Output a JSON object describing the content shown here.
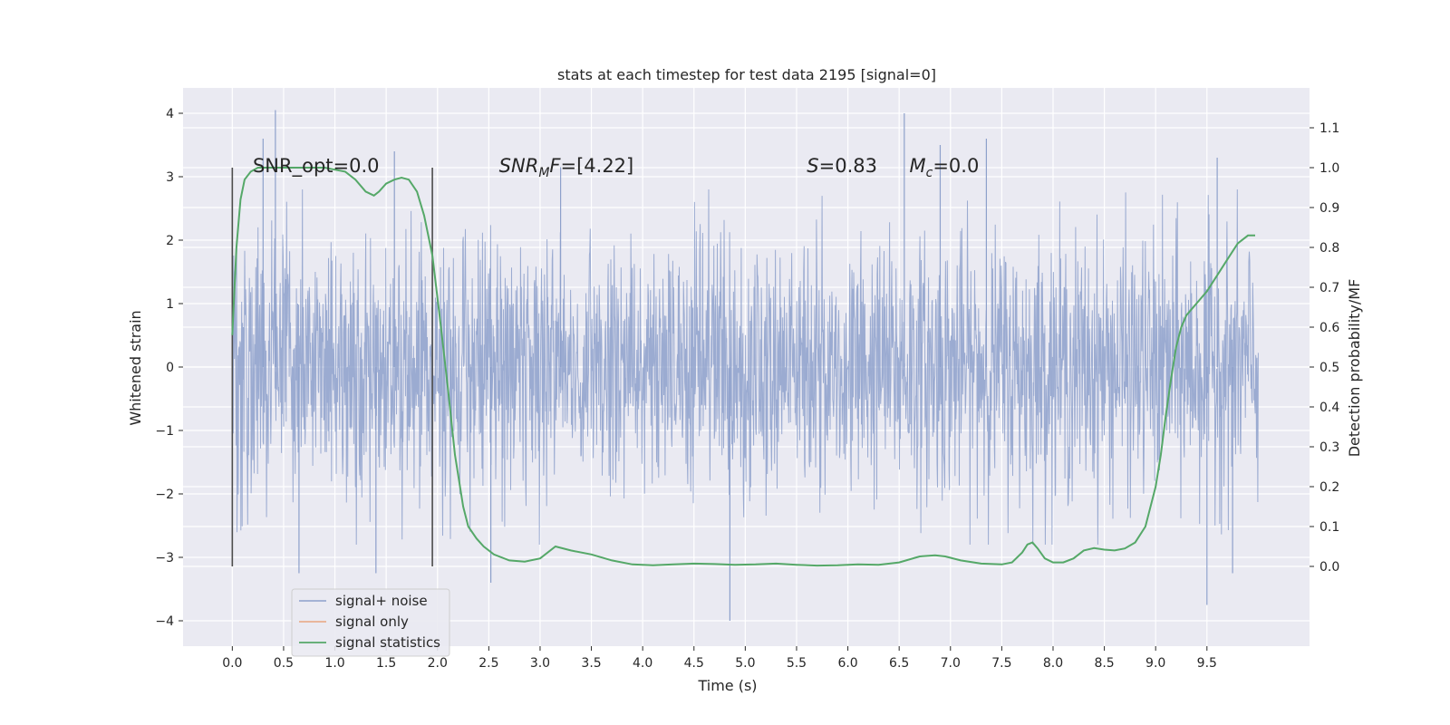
{
  "chart_data": {
    "type": "line",
    "title": "stats at each timestep for test data 2195 [signal=0]",
    "xlabel": "Time (s)",
    "ylabel": "Whitened strain",
    "y2label": "Detection probability/MF",
    "xlim": [
      -0.48,
      10.5
    ],
    "ylim": [
      -4.4,
      4.4
    ],
    "y2lim": [
      -0.2,
      1.2
    ],
    "xticks": [
      0.0,
      0.5,
      1.0,
      1.5,
      2.0,
      2.5,
      3.0,
      3.5,
      4.0,
      4.5,
      5.0,
      5.5,
      6.0,
      6.5,
      7.0,
      7.5,
      8.0,
      8.5,
      9.0,
      9.5
    ],
    "xtick_labels": [
      "0.0",
      "0.5",
      "1.0",
      "1.5",
      "2.0",
      "2.5",
      "3.0",
      "3.5",
      "4.0",
      "4.5",
      "5.0",
      "5.5",
      "6.0",
      "6.5",
      "7.0",
      "7.5",
      "8.0",
      "8.5",
      "9.0",
      "9.5"
    ],
    "yticks": [
      -4,
      -3,
      -2,
      -1,
      0,
      1,
      2,
      3,
      4
    ],
    "ytick_labels": [
      "−4",
      "−3",
      "−2",
      "−1",
      "0",
      "1",
      "2",
      "3",
      "4"
    ],
    "y2ticks": [
      0.0,
      0.1,
      0.2,
      0.3,
      0.4,
      0.5,
      0.6,
      0.7,
      0.8,
      0.9,
      1.0,
      1.1
    ],
    "y2tick_labels": [
      "0.0",
      "0.1",
      "0.2",
      "0.3",
      "0.4",
      "0.5",
      "0.6",
      "0.7",
      "0.8",
      "0.9",
      "1.0",
      "1.1"
    ],
    "grid": true,
    "legend_position": "lower-left",
    "series": [
      {
        "name": "signal+ noise",
        "color": "#8da0cb",
        "style": "dense noise",
        "x_range": [
          0.0,
          10.0
        ],
        "y_range": [
          -4.0,
          4.05
        ],
        "peaks": [
          {
            "x": 0.42,
            "y": 4.05
          },
          {
            "x": 0.3,
            "y": 3.6
          },
          {
            "x": 1.58,
            "y": 3.4
          },
          {
            "x": 6.55,
            "y": 4.0
          },
          {
            "x": 7.35,
            "y": 3.6
          },
          {
            "x": 6.9,
            "y": 3.5
          },
          {
            "x": 9.6,
            "y": 3.3
          },
          {
            "x": 3.2,
            "y": 3.15
          }
        ],
        "troughs": [
          {
            "x": 4.85,
            "y": -4.0
          },
          {
            "x": 9.5,
            "y": -3.75
          },
          {
            "x": 2.52,
            "y": -3.4
          },
          {
            "x": 1.4,
            "y": -3.25
          },
          {
            "x": 0.65,
            "y": -3.25
          },
          {
            "x": 9.75,
            "y": -3.25
          }
        ]
      },
      {
        "name": "signal only",
        "color": "#e8a47f",
        "x": [],
        "y": []
      },
      {
        "name": "signal statistics",
        "color": "#55a868",
        "axis": "right",
        "x": [
          0.0,
          0.04,
          0.08,
          0.12,
          0.18,
          0.25,
          0.35,
          0.5,
          0.7,
          0.9,
          1.1,
          1.2,
          1.3,
          1.38,
          1.43,
          1.5,
          1.58,
          1.65,
          1.72,
          1.8,
          1.87,
          1.95,
          2.02,
          2.1,
          2.17,
          2.25,
          2.3,
          2.38,
          2.45,
          2.55,
          2.7,
          2.85,
          3.0,
          3.15,
          3.3,
          3.5,
          3.7,
          3.9,
          4.1,
          4.3,
          4.5,
          4.7,
          4.9,
          5.1,
          5.3,
          5.5,
          5.7,
          5.9,
          6.1,
          6.3,
          6.5,
          6.7,
          6.85,
          6.95,
          7.1,
          7.3,
          7.5,
          7.6,
          7.7,
          7.75,
          7.8,
          7.85,
          7.92,
          8.0,
          8.1,
          8.2,
          8.3,
          8.4,
          8.5,
          8.6,
          8.7,
          8.8,
          8.9,
          9.0,
          9.05,
          9.1,
          9.15,
          9.2,
          9.25,
          9.3,
          9.4,
          9.5,
          9.6,
          9.7,
          9.8,
          9.9,
          9.97
        ],
        "y": [
          0.58,
          0.8,
          0.92,
          0.97,
          0.99,
          1.0,
          1.0,
          1.0,
          1.0,
          1.0,
          0.99,
          0.97,
          0.94,
          0.93,
          0.94,
          0.96,
          0.97,
          0.975,
          0.97,
          0.94,
          0.88,
          0.78,
          0.63,
          0.45,
          0.28,
          0.15,
          0.1,
          0.07,
          0.05,
          0.03,
          0.015,
          0.012,
          0.02,
          0.05,
          0.04,
          0.03,
          0.015,
          0.005,
          0.003,
          0.005,
          0.007,
          0.006,
          0.004,
          0.005,
          0.007,
          0.004,
          0.002,
          0.003,
          0.005,
          0.004,
          0.01,
          0.025,
          0.028,
          0.025,
          0.015,
          0.007,
          0.005,
          0.01,
          0.035,
          0.055,
          0.06,
          0.045,
          0.02,
          0.01,
          0.01,
          0.02,
          0.04,
          0.046,
          0.042,
          0.04,
          0.045,
          0.06,
          0.1,
          0.2,
          0.28,
          0.38,
          0.47,
          0.55,
          0.6,
          0.63,
          0.66,
          0.69,
          0.73,
          0.77,
          0.81,
          0.83,
          0.83
        ]
      }
    ],
    "vlines": [
      0.0,
      1.95
    ],
    "vline_color": "#4d4d4d",
    "annotations": [
      {
        "text": "SNR_opt=0.0",
        "x": 0.2,
        "y": 3.2
      },
      {
        "text": "SNR",
        "sub": "M",
        "tail": "F=[4.22]",
        "italic": true,
        "x": 2.6,
        "y": 3.2
      },
      {
        "text": "S",
        "tail": "=0.83",
        "italic": true,
        "x": 5.6,
        "y": 3.2
      },
      {
        "text": "M",
        "sub": "c",
        "tail": "=0.0",
        "italic": true,
        "x": 6.6,
        "y": 3.2
      }
    ],
    "colors": {
      "plot_background": "#eaeaf2",
      "grid": "#ffffff"
    }
  }
}
